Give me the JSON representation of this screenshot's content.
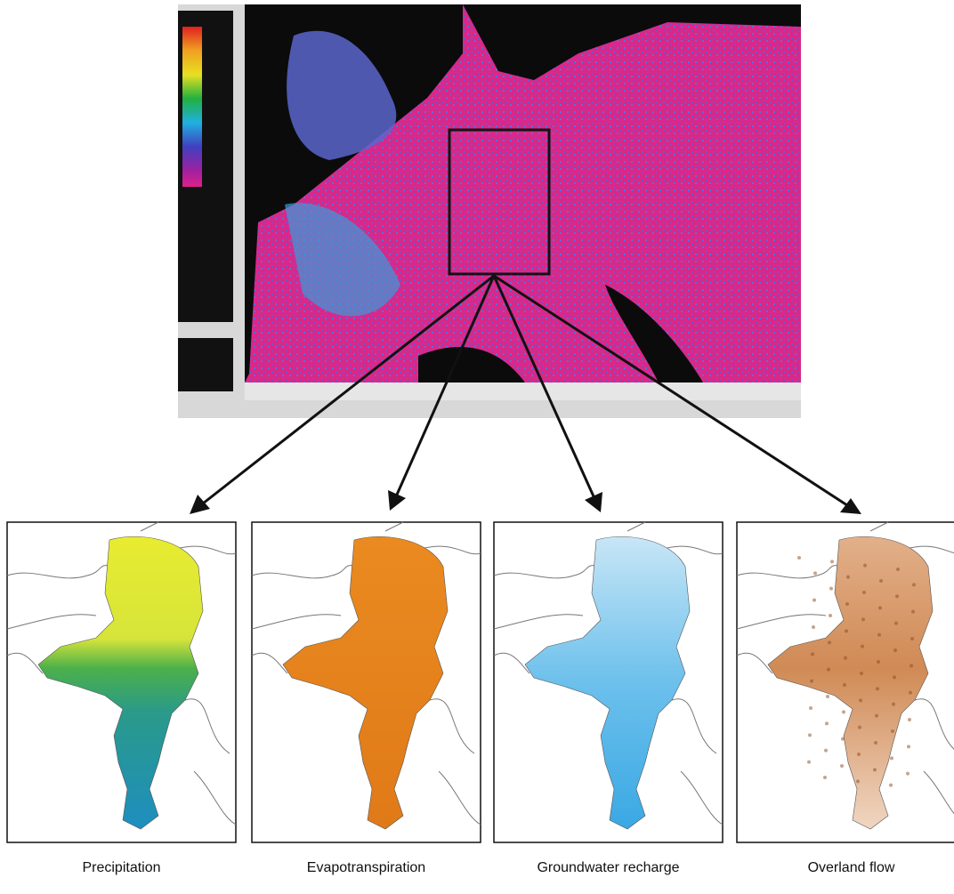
{
  "captions": [
    "Precipitation",
    "Evapotranspiration",
    "Groundwater recharge",
    "Overland flow"
  ]
}
